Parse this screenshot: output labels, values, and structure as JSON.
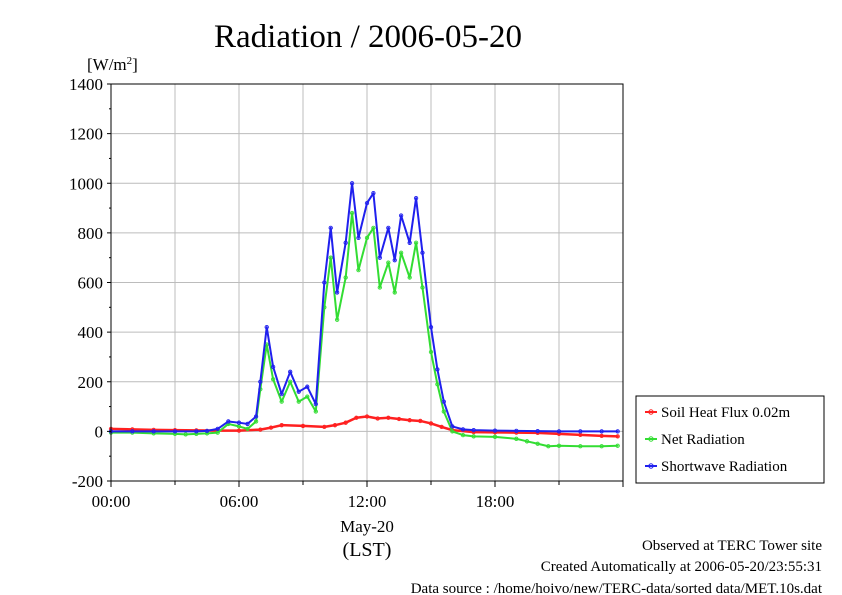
{
  "chart_data": {
    "type": "line",
    "title": "Radiation / 2006-05-20",
    "ylabel_prefix": "[W/m",
    "ylabel_sup": "2",
    "ylabel_suffix": "]",
    "xlabel_date": "May-20",
    "xlabel_unit": "(LST)",
    "xlim": [
      0,
      24
    ],
    "ylim": [
      -200,
      1400
    ],
    "x_ticks": [
      {
        "value": 0,
        "label": "00:00"
      },
      {
        "value": 6,
        "label": "06:00"
      },
      {
        "value": 12,
        "label": "12:00"
      },
      {
        "value": 18,
        "label": "18:00"
      }
    ],
    "y_ticks": [
      {
        "value": -200,
        "label": "-200"
      },
      {
        "value": 0,
        "label": "0"
      },
      {
        "value": 200,
        "label": "200"
      },
      {
        "value": 400,
        "label": "400"
      },
      {
        "value": 600,
        "label": "600"
      },
      {
        "value": 800,
        "label": "800"
      },
      {
        "value": 1000,
        "label": "1000"
      },
      {
        "value": 1200,
        "label": "1200"
      },
      {
        "value": 1400,
        "label": "1400"
      }
    ],
    "grid": true,
    "legend_position": "right",
    "series": [
      {
        "name": "Soil Heat Flux 0.02m",
        "color": "#ff2020",
        "x": [
          0,
          1,
          2,
          3,
          4,
          5,
          6,
          7,
          7.5,
          8,
          9,
          10,
          10.5,
          11,
          11.5,
          12,
          12.5,
          13,
          13.5,
          14,
          14.5,
          15,
          15.5,
          16,
          17,
          18,
          19,
          20,
          21,
          22,
          23,
          23.75
        ],
        "values": [
          10,
          8,
          6,
          5,
          4,
          3,
          3,
          7,
          15,
          25,
          22,
          18,
          25,
          35,
          55,
          60,
          52,
          55,
          50,
          45,
          42,
          32,
          18,
          5,
          -3,
          -4,
          -5,
          -6,
          -10,
          -14,
          -18,
          -20
        ]
      },
      {
        "name": "Net Radiation",
        "color": "#33dd33",
        "x": [
          0,
          1,
          2,
          3,
          3.5,
          4,
          4.5,
          5,
          5.5,
          6,
          6.4,
          6.8,
          7.0,
          7.3,
          7.6,
          8.0,
          8.4,
          8.8,
          9.2,
          9.6,
          10.0,
          10.3,
          10.6,
          11.0,
          11.3,
          11.6,
          12.0,
          12.3,
          12.6,
          13.0,
          13.3,
          13.6,
          14.0,
          14.3,
          14.6,
          15.0,
          15.3,
          15.6,
          16.0,
          16.5,
          17.0,
          18.0,
          19.0,
          19.5,
          20.0,
          20.5,
          21.0,
          22.0,
          23.0,
          23.75
        ],
        "values": [
          -5,
          -5,
          -8,
          -10,
          -12,
          -10,
          -8,
          -5,
          30,
          20,
          10,
          40,
          170,
          350,
          210,
          120,
          200,
          120,
          140,
          80,
          500,
          700,
          450,
          620,
          880,
          650,
          780,
          820,
          580,
          680,
          560,
          720,
          620,
          760,
          580,
          320,
          190,
          80,
          0,
          -15,
          -20,
          -22,
          -30,
          -40,
          -50,
          -60,
          -58,
          -60,
          -60,
          -58
        ]
      },
      {
        "name": "Shortwave Radiation",
        "color": "#2020ee",
        "x": [
          0,
          1,
          2,
          3,
          4,
          4.5,
          5,
          5.5,
          6,
          6.4,
          6.8,
          7.0,
          7.3,
          7.6,
          8.0,
          8.4,
          8.8,
          9.2,
          9.6,
          10.0,
          10.3,
          10.6,
          11.0,
          11.3,
          11.6,
          12.0,
          12.3,
          12.6,
          13.0,
          13.3,
          13.6,
          14.0,
          14.3,
          14.6,
          15.0,
          15.3,
          15.6,
          16.0,
          16.5,
          17.0,
          18.0,
          19.0,
          20.0,
          21.0,
          22.0,
          23.0,
          23.75
        ],
        "values": [
          0,
          0,
          0,
          0,
          0,
          2,
          10,
          40,
          35,
          30,
          60,
          200,
          420,
          260,
          150,
          240,
          160,
          180,
          110,
          600,
          820,
          560,
          760,
          1000,
          780,
          920,
          960,
          700,
          820,
          690,
          870,
          760,
          940,
          720,
          420,
          250,
          120,
          20,
          8,
          5,
          3,
          2,
          1,
          0,
          0,
          0,
          0
        ]
      }
    ]
  },
  "footer": {
    "line1": "Observed at TERC Tower site",
    "line2": "Created Automatically at 2006-05-20/23:55:31",
    "line3": "Data source : /home/hoivo/new/TERC-data/sorted  data/MET.10s.dat"
  }
}
